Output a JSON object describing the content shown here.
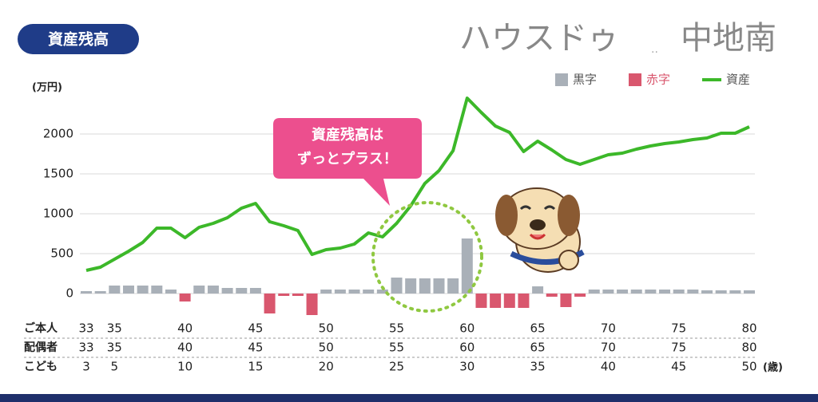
{
  "header": {
    "badge": "資産残高",
    "brand": "ハウスドゥ",
    "brand_dots": "..",
    "brand_area": "中地南"
  },
  "chart_data": {
    "type": "bar-line",
    "unit_label": "(万円)",
    "x": [
      33,
      34,
      35,
      36,
      37,
      38,
      39,
      40,
      41,
      42,
      43,
      44,
      45,
      46,
      47,
      48,
      49,
      50,
      51,
      52,
      53,
      54,
      55,
      56,
      57,
      58,
      59,
      60,
      61,
      62,
      63,
      64,
      65,
      66,
      67,
      68,
      69,
      70,
      71,
      72,
      73,
      74,
      75,
      76,
      77,
      78,
      79,
      80
    ],
    "xlim": [
      33,
      80
    ],
    "ylim": [
      -300,
      2500
    ],
    "yticks": [
      0,
      500,
      1000,
      1500,
      2000
    ],
    "grid": true,
    "legend": "top-right",
    "series": [
      {
        "name": "黒字",
        "type": "bar",
        "color": "#a9b0b8",
        "values": [
          30,
          30,
          100,
          100,
          100,
          100,
          50,
          null,
          100,
          100,
          70,
          70,
          70,
          null,
          null,
          null,
          null,
          50,
          50,
          50,
          50,
          50,
          200,
          190,
          190,
          190,
          190,
          690,
          null,
          null,
          null,
          null,
          90,
          null,
          null,
          null,
          50,
          50,
          50,
          50,
          50,
          50,
          50,
          50,
          40,
          40,
          40,
          40
        ]
      },
      {
        "name": "赤字",
        "type": "bar",
        "color": "#d9576e",
        "values": [
          null,
          null,
          null,
          null,
          null,
          null,
          null,
          -100,
          null,
          null,
          null,
          null,
          null,
          -250,
          -30,
          -30,
          -270,
          null,
          null,
          null,
          null,
          null,
          null,
          null,
          null,
          null,
          null,
          null,
          -180,
          -180,
          -180,
          -180,
          null,
          -40,
          -170,
          -40,
          null,
          null,
          null,
          null,
          null,
          null,
          null,
          null,
          null,
          null,
          null,
          null
        ]
      },
      {
        "name": "資産",
        "type": "line",
        "color": "#3cb829",
        "values": [
          290,
          330,
          430,
          530,
          640,
          820,
          820,
          700,
          830,
          880,
          950,
          1070,
          1130,
          900,
          850,
          790,
          490,
          550,
          570,
          620,
          760,
          710,
          880,
          1100,
          1380,
          1540,
          1790,
          2450,
          2270,
          2100,
          2020,
          1780,
          1910,
          1800,
          1680,
          1620,
          1680,
          1740,
          1760,
          1810,
          1850,
          1880,
          1900,
          1930,
          1950,
          2010,
          2010,
          2090
        ]
      }
    ],
    "age_rows": [
      {
        "label": "ご本人",
        "ticks": [
          33,
          35,
          40,
          45,
          50,
          55,
          60,
          65,
          70,
          75,
          80
        ]
      },
      {
        "label": "配偶者",
        "ticks": [
          33,
          35,
          40,
          45,
          50,
          55,
          60,
          65,
          70,
          75,
          80
        ]
      },
      {
        "label": "こども",
        "ticks": [
          {
            "value": 33,
            "label": "3"
          },
          {
            "value": 35,
            "label": "5"
          },
          {
            "value": 40,
            "label": "10"
          },
          {
            "value": 45,
            "label": "15"
          },
          {
            "value": 50,
            "label": "20"
          },
          {
            "value": 55,
            "label": "25"
          },
          {
            "value": 60,
            "label": "30"
          },
          {
            "value": 65,
            "label": "35"
          },
          {
            "value": 70,
            "label": "40"
          },
          {
            "value": 75,
            "label": "45"
          },
          {
            "value": 80,
            "label": "50"
          }
        ]
      }
    ],
    "age_unit": "(歳)",
    "callout": [
      "資産残高は",
      "ずっとプラス！"
    ]
  }
}
